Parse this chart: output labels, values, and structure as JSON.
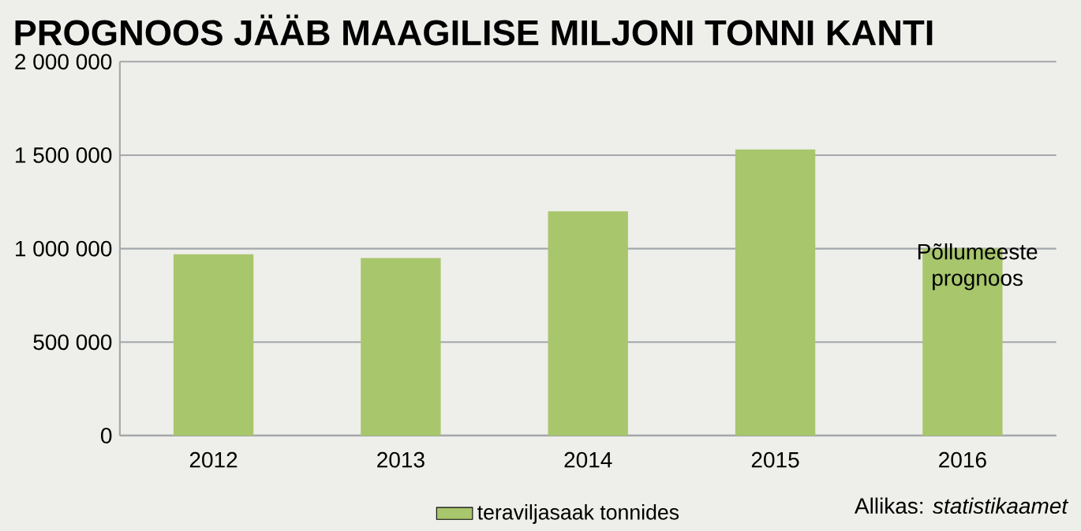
{
  "chart_data": {
    "type": "bar",
    "title": "PROGNOOS JÄÄB MAAGILISE MILJONI TONNI KANTI",
    "categories": [
      "2012",
      "2013",
      "2014",
      "2015",
      "2016"
    ],
    "series": [
      {
        "name": "teraviljasaak tonnides",
        "color": "#a8c66c",
        "values": [
          970000,
          950000,
          1200000,
          1530000,
          1000000
        ]
      }
    ],
    "ylim": [
      0,
      2000000
    ],
    "yticks": [
      0,
      {
        "value": 500000,
        "label": "500 000"
      },
      {
        "value": 1000000,
        "label": "1 000 000"
      },
      {
        "value": 1500000,
        "label": "1 500 000"
      },
      {
        "value": 2000000,
        "label": "2 000 000"
      }
    ],
    "grid": "y",
    "legend": "bottom",
    "annotations": [
      "Põllumeeste prognoos",
      "Allikas: *statistikaamet*"
    ]
  }
}
